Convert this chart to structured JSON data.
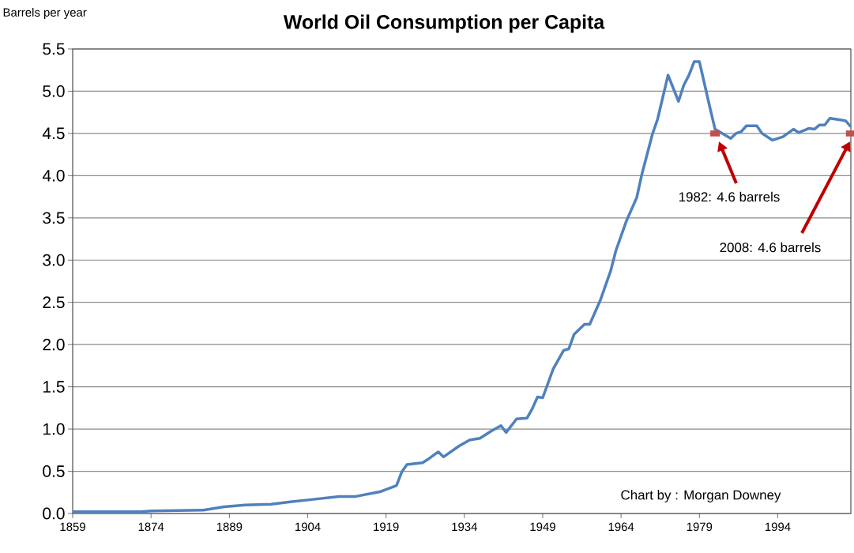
{
  "chart_data": {
    "type": "line",
    "title": "World Oil Consumption per Capita",
    "ylabel": "Barrels per year",
    "x": [
      1859,
      1872,
      1874,
      1884,
      1888,
      1892,
      1897,
      1901,
      1904,
      1910,
      1913,
      1918,
      1921,
      1922,
      1923,
      1926,
      1927,
      1929,
      1930,
      1933,
      1935,
      1937,
      1939,
      1941,
      1942,
      1944,
      1946,
      1947,
      1948,
      1949,
      1951,
      1953,
      1954,
      1955,
      1957,
      1958,
      1960,
      1962,
      1963,
      1965,
      1967,
      1968,
      1970,
      1971,
      1973,
      1975,
      1976,
      1977,
      1978,
      1979,
      1981,
      1982,
      1985,
      1986,
      1987,
      1988,
      1990,
      1991,
      1993,
      1995,
      1997,
      1998,
      2000,
      2001,
      2002,
      2003,
      2004,
      2006,
      2007,
      2008
    ],
    "series": [
      {
        "color": "#4f81bd",
        "values": [
          0.02,
          0.02,
          0.03,
          0.04,
          0.08,
          0.1,
          0.11,
          0.14,
          0.16,
          0.2,
          0.2,
          0.26,
          0.33,
          0.49,
          0.58,
          0.6,
          0.64,
          0.73,
          0.67,
          0.8,
          0.87,
          0.89,
          0.97,
          1.04,
          0.96,
          1.12,
          1.13,
          1.24,
          1.38,
          1.37,
          1.71,
          1.93,
          1.95,
          2.12,
          2.24,
          2.24,
          2.52,
          2.87,
          3.11,
          3.46,
          3.74,
          4.02,
          4.49,
          4.67,
          5.19,
          4.88,
          5.07,
          5.19,
          5.35,
          5.35,
          4.81,
          4.55,
          4.44,
          4.5,
          4.52,
          4.59,
          4.59,
          4.5,
          4.42,
          4.46,
          4.55,
          4.51,
          4.56,
          4.55,
          4.6,
          4.6,
          4.68,
          4.66,
          4.65,
          4.58
        ]
      },
      {
        "type": "scatter",
        "x": [
          1982,
          2008
        ],
        "color": "#c0504d",
        "marker": "square",
        "values": [
          4.5,
          4.5
        ]
      }
    ],
    "xlim": [
      1859,
      2008
    ],
    "xticks": [
      1859,
      1874,
      1889,
      1904,
      1919,
      1934,
      1949,
      1964,
      1979,
      1994
    ],
    "ylim": [
      0,
      5.5
    ],
    "yticks": [
      {
        "value": 0,
        "label": "0.0"
      },
      0.5,
      {
        "value": 1,
        "label": "1.0"
      },
      1.5,
      {
        "value": 2,
        "label": "2.0"
      },
      2.5,
      {
        "value": 3,
        "label": "3.0"
      },
      3.5,
      {
        "value": 4,
        "label": "4.0"
      },
      4.5,
      {
        "value": 5,
        "label": "5.0"
      },
      5.5
    ],
    "grid": "y",
    "marker": "none",
    "line_style": "solid",
    "annotations": [
      "1982: 4.6 barrels",
      "2008: 4.6 barrels",
      "Chart by : Morgan Downey"
    ]
  }
}
